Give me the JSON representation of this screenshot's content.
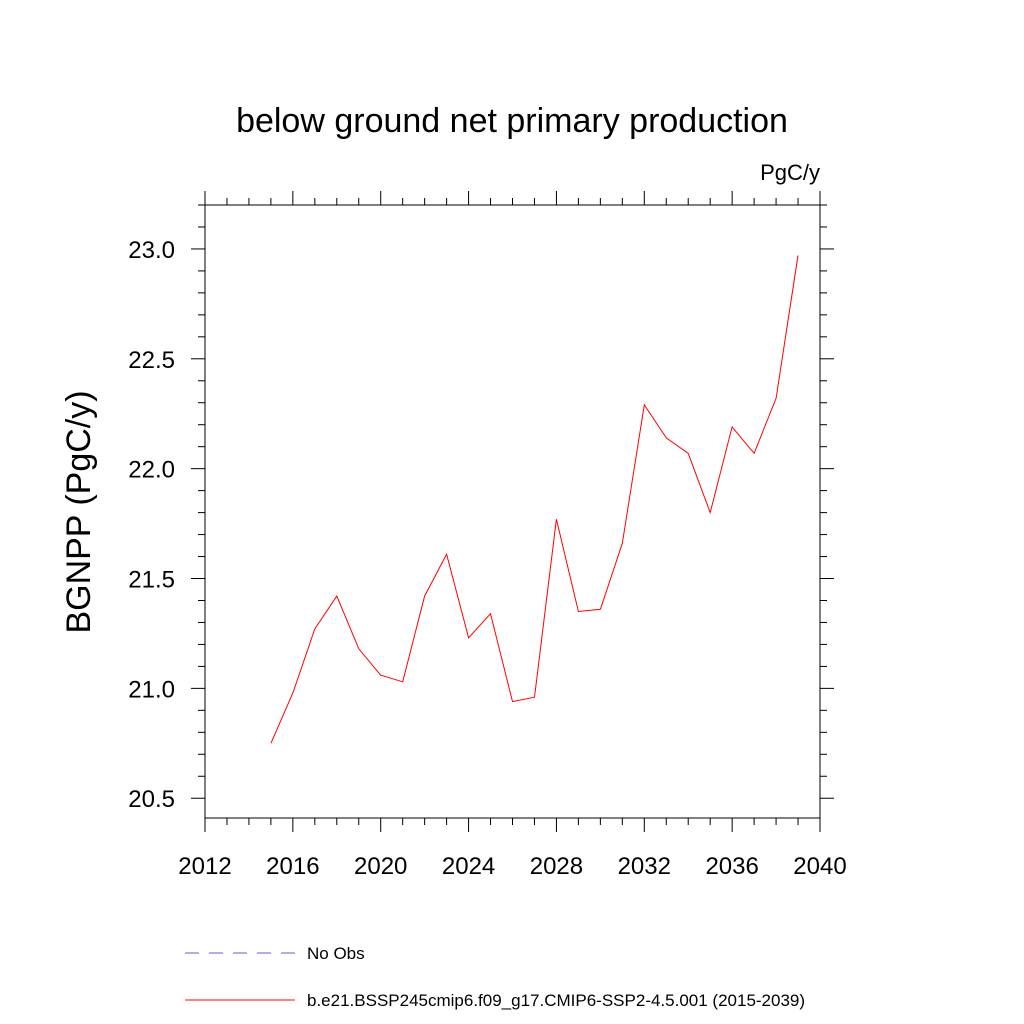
{
  "chart_data": {
    "type": "line",
    "title": "below ground net primary production",
    "units_label": "PgC/y",
    "ylabel": "BGNPP  (PgC/y)",
    "xlabel": "",
    "xlim": [
      2012,
      2040
    ],
    "ylim": [
      20.41,
      23.2
    ],
    "x_ticks": [
      2012,
      2016,
      2020,
      2024,
      2028,
      2032,
      2036,
      2040
    ],
    "y_ticks": [
      20.5,
      21.0,
      21.5,
      22.0,
      22.5,
      23.0
    ],
    "x_tick_labels": [
      "2012",
      "2016",
      "2020",
      "2024",
      "2028",
      "2032",
      "2036",
      "2040"
    ],
    "y_tick_labels": [
      "20.5",
      "21.0",
      "21.5",
      "22.0",
      "22.5",
      "23.0"
    ],
    "grid": false,
    "series": [
      {
        "name": "b.e21.BSSP245cmip6.f09_g17.CMIP6-SSP2-4.5.001 (2015-2039)",
        "color": "#ff0000",
        "style": "solid",
        "x": [
          2015,
          2016,
          2017,
          2018,
          2019,
          2020,
          2021,
          2022,
          2023,
          2024,
          2025,
          2026,
          2027,
          2028,
          2029,
          2030,
          2031,
          2032,
          2033,
          2034,
          2035,
          2036,
          2037,
          2038,
          2039
        ],
        "values": [
          20.75,
          20.98,
          21.27,
          21.42,
          21.18,
          21.06,
          21.03,
          21.42,
          21.61,
          21.23,
          21.34,
          20.94,
          20.96,
          21.77,
          21.35,
          21.36,
          21.66,
          22.29,
          22.14,
          22.07,
          21.8,
          22.19,
          22.07,
          22.32,
          22.97
        ]
      },
      {
        "name": "No Obs",
        "color": "#6a5acd",
        "style": "dashed",
        "x": [],
        "values": []
      }
    ],
    "legend_position": "bottom"
  }
}
